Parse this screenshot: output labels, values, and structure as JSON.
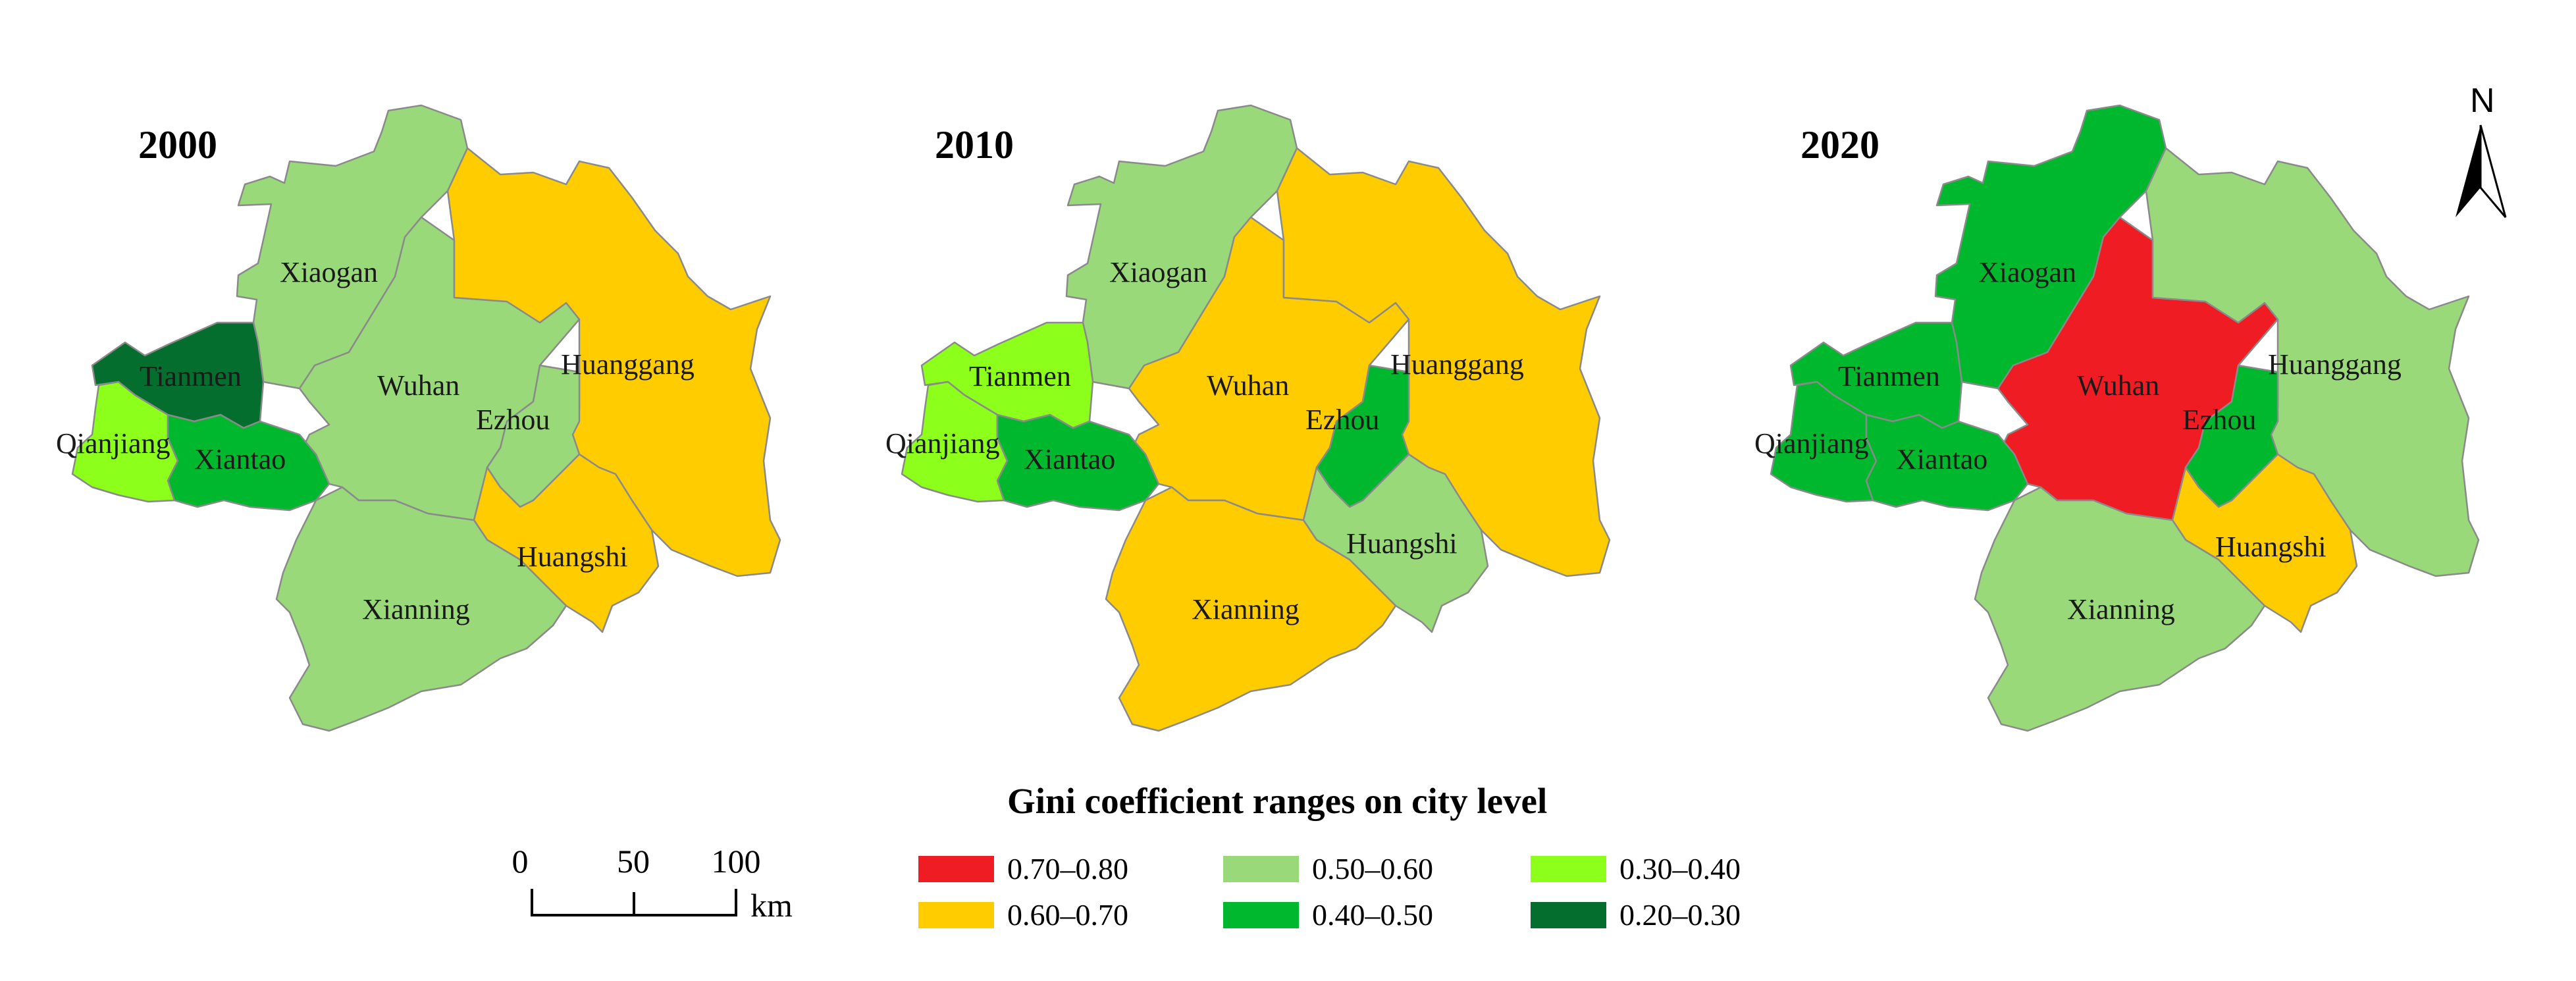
{
  "maps": [
    {
      "year": "2000",
      "regions": {
        "xiaogan": {
          "label": "Xiaogan",
          "range": "0.50–0.60"
        },
        "wuhan": {
          "label": "Wuhan",
          "range": "0.50–0.60"
        },
        "huanggang": {
          "label": "Huanggang",
          "range": "0.60–0.70"
        },
        "tianmen": {
          "label": "Tianmen",
          "range": "0.20–0.30"
        },
        "qianjiang": {
          "label": "Qianjiang",
          "range": "0.30–0.40"
        },
        "xiantao": {
          "label": "Xiantao",
          "range": "0.40–0.50"
        },
        "ezhou": {
          "label": "Ezhou",
          "range": "0.50–0.60"
        },
        "huangshi": {
          "label": "Huangshi",
          "range": "0.60–0.70"
        },
        "xianning": {
          "label": "Xianning",
          "range": "0.50–0.60"
        }
      }
    },
    {
      "year": "2010",
      "regions": {
        "xiaogan": {
          "label": "Xiaogan",
          "range": "0.50–0.60"
        },
        "wuhan": {
          "label": "Wuhan",
          "range": "0.60–0.70"
        },
        "huanggang": {
          "label": "Huanggang",
          "range": "0.60–0.70"
        },
        "tianmen": {
          "label": "Tianmen",
          "range": "0.30–0.40"
        },
        "qianjiang": {
          "label": "Qianjiang",
          "range": "0.30–0.40"
        },
        "xiantao": {
          "label": "Xiantao",
          "range": "0.40–0.50"
        },
        "ezhou": {
          "label": "Ezhou",
          "range": "0.40–0.50"
        },
        "huangshi": {
          "label": "Huangshi",
          "range": "0.50–0.60"
        },
        "xianning": {
          "label": "Xianning",
          "range": "0.60–0.70"
        }
      }
    },
    {
      "year": "2020",
      "regions": {
        "xiaogan": {
          "label": "Xiaogan",
          "range": "0.40–0.50"
        },
        "wuhan": {
          "label": "Wuhan",
          "range": "0.70–0.80"
        },
        "huanggang": {
          "label": "Huanggang",
          "range": "0.50–0.60"
        },
        "tianmen": {
          "label": "Tianmen",
          "range": "0.40–0.50"
        },
        "qianjiang": {
          "label": "Qianjiang",
          "range": "0.40–0.50"
        },
        "xiantao": {
          "label": "Xiantao",
          "range": "0.40–0.50"
        },
        "ezhou": {
          "label": "Ezhou",
          "range": "0.40–0.50"
        },
        "huangshi": {
          "label": "Huangshi",
          "range": "0.60–0.70"
        },
        "xianning": {
          "label": "Xianning",
          "range": "0.50–0.60"
        }
      }
    }
  ],
  "legend": {
    "title": "Gini coefficient ranges on city level",
    "items": [
      {
        "range": "0.70–0.80",
        "color": "#f01c24"
      },
      {
        "range": "0.60–0.70",
        "color": "#ffcc00"
      },
      {
        "range": "0.50–0.60",
        "color": "#99d97a"
      },
      {
        "range": "0.40–0.50",
        "color": "#00b82e"
      },
      {
        "range": "0.30–0.40",
        "color": "#8cff1a"
      },
      {
        "range": "0.20–0.30",
        "color": "#046e2e"
      }
    ]
  },
  "scale_bar": {
    "ticks": [
      "0",
      "50",
      "100"
    ],
    "unit": "km"
  },
  "north_arrow": {
    "label": "N",
    "icon": "north-arrow-icon"
  }
}
